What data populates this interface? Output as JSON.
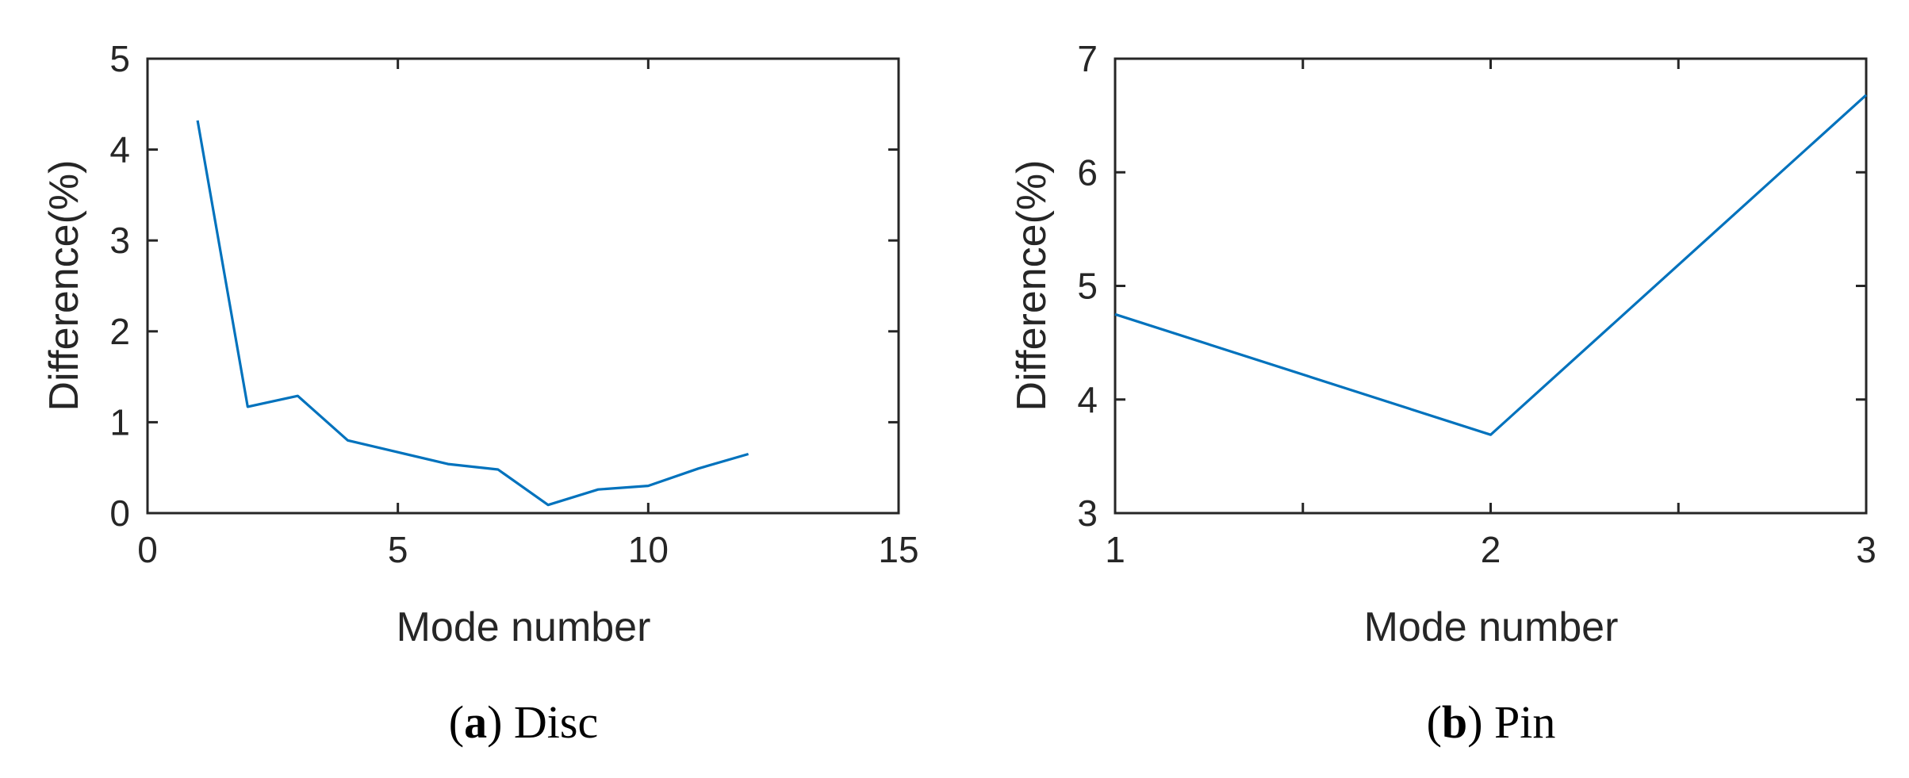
{
  "chart_data": [
    {
      "type": "line",
      "panel_label": "a",
      "caption": "Disc",
      "xlabel": "Mode number",
      "ylabel": "Difference(%)",
      "xlim": [
        0,
        15
      ],
      "ylim": [
        0,
        5
      ],
      "xticks": [
        0,
        5,
        10,
        15
      ],
      "yticks": [
        0,
        1,
        2,
        3,
        4,
        5
      ],
      "grid": false,
      "series": [
        {
          "color": "#0072BD",
          "x": [
            1,
            2,
            3,
            4,
            5,
            6,
            7,
            8,
            9,
            10,
            11,
            12
          ],
          "y": [
            4.32,
            1.17,
            1.29,
            0.8,
            0.67,
            0.54,
            0.48,
            0.09,
            0.26,
            0.3,
            0.49,
            0.65
          ]
        }
      ]
    },
    {
      "type": "line",
      "panel_label": "b",
      "caption": "Pin",
      "xlabel": "Mode number",
      "ylabel": "Difference(%)",
      "xlim": [
        1,
        3
      ],
      "ylim": [
        3,
        7
      ],
      "xticks": [
        1,
        2,
        3
      ],
      "yticks": [
        3,
        4,
        5,
        6,
        7
      ],
      "grid": false,
      "series": [
        {
          "color": "#0072BD",
          "x": [
            1,
            2,
            3
          ],
          "y": [
            4.75,
            3.69,
            6.68
          ]
        }
      ]
    }
  ]
}
